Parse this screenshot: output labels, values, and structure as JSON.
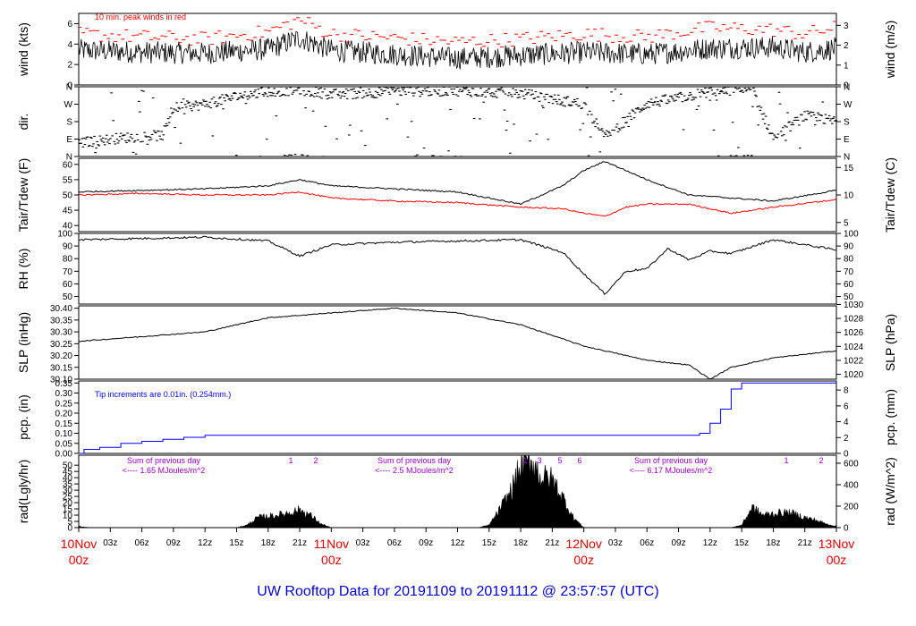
{
  "title": "UW Rooftop Data for 20191109  to  20191112 @ 23:57:57  (UTC)",
  "colors": {
    "peak": "#ff0000",
    "dew": "#ff0000",
    "precip": "#0000ff",
    "annot": "#9900cc",
    "title": "#0000cc",
    "date": "#dd0000"
  },
  "x_axis": {
    "hour_ticks": [
      "03z",
      "06z",
      "09z",
      "12z",
      "15z",
      "18z",
      "21z",
      "03z",
      "06z",
      "09z",
      "12z",
      "15z",
      "18z",
      "21z",
      "03z",
      "06z",
      "09z",
      "12z",
      "15z",
      "18z",
      "21z"
    ],
    "day_labels": [
      {
        "date": "10Nov",
        "time": "00z"
      },
      {
        "date": "11Nov",
        "time": "00z"
      },
      {
        "date": "12Nov",
        "time": "00z"
      },
      {
        "date": "13Nov",
        "time": "00z"
      }
    ]
  },
  "chart_data": [
    {
      "id": "wind",
      "type": "line",
      "ylabel": "wind (kts)",
      "ylabel_right": "wind (m/s)",
      "ylim": [
        0,
        7
      ],
      "yticks": [
        "0",
        "2",
        "4",
        "6"
      ],
      "right_ticks": [
        "0",
        "1",
        "2",
        "3"
      ],
      "annotation": "10 min. peak winds in red",
      "series": [
        {
          "name": "wind",
          "x": [
            0,
            6,
            12,
            18,
            21,
            24,
            30,
            36,
            42,
            48,
            54,
            60,
            66,
            69,
            72
          ],
          "y": [
            3.4,
            3.2,
            3.1,
            3.5,
            4.6,
            3.4,
            3.0,
            2.6,
            2.9,
            3.2,
            3.0,
            3.6,
            3.7,
            3.2,
            3.6
          ]
        },
        {
          "name": "10 min. peak winds",
          "x": [
            0,
            6,
            12,
            18,
            21,
            24,
            30,
            36,
            42,
            48,
            54,
            60,
            66,
            69,
            72
          ],
          "y": [
            5.0,
            4.7,
            4.5,
            5.2,
            6.4,
            5.0,
            4.6,
            4.2,
            4.5,
            5.0,
            4.7,
            5.6,
            5.4,
            5.0,
            5.6
          ]
        }
      ]
    },
    {
      "id": "dir",
      "type": "scatter",
      "ylabel": "dir.",
      "ylim": [
        0,
        360
      ],
      "yticks": [
        "N",
        "E",
        "S",
        "W",
        "N"
      ],
      "right_ticks": [
        "N",
        "E",
        "S",
        "W",
        "N"
      ],
      "series": [
        {
          "name": "dir",
          "x": [
            0,
            4,
            8,
            9,
            12,
            15,
            18,
            21,
            24,
            30,
            36,
            42,
            48,
            50,
            54,
            56,
            60,
            64,
            66,
            69,
            72
          ],
          "y": [
            70,
            95,
            110,
            250,
            270,
            310,
            335,
            345,
            320,
            335,
            340,
            325,
            270,
            100,
            275,
            290,
            335,
            345,
            95,
            210,
            180
          ]
        }
      ]
    },
    {
      "id": "temp",
      "type": "line",
      "ylabel": "Tair/Tdew (F)",
      "ylabel_right": "Tair/Tdew (C)",
      "ylim": [
        38,
        62
      ],
      "yticks": [
        "40",
        "45",
        "50",
        "55",
        "60"
      ],
      "right_ticks": [
        "5",
        "10",
        "15"
      ],
      "series": [
        {
          "name": "Tair",
          "x": [
            0,
            6,
            12,
            18,
            21,
            24,
            30,
            36,
            42,
            46,
            48,
            50,
            52,
            54,
            58,
            62,
            66,
            72
          ],
          "y": [
            51,
            51.5,
            52,
            53,
            55,
            53,
            52,
            51,
            47,
            53,
            58,
            61,
            58,
            55,
            50,
            49,
            48,
            51.5
          ]
        },
        {
          "name": "Tdew",
          "x": [
            0,
            6,
            12,
            18,
            21,
            24,
            30,
            36,
            42,
            46,
            48,
            50,
            52,
            54,
            58,
            62,
            66,
            72
          ],
          "y": [
            50,
            50.5,
            50,
            50,
            51,
            49,
            48,
            47.5,
            46,
            45.5,
            44,
            43,
            46,
            47,
            47,
            44,
            46,
            48.5
          ]
        }
      ]
    },
    {
      "id": "rh",
      "type": "line",
      "ylabel": "RH (%)",
      "ylim": [
        44,
        100
      ],
      "yticks": [
        "50",
        "60",
        "70",
        "80",
        "90",
        "100"
      ],
      "right_ticks": [
        "50",
        "60",
        "70",
        "80",
        "90",
        "100"
      ],
      "series": [
        {
          "name": "RH",
          "x": [
            0,
            6,
            12,
            18,
            21,
            24,
            30,
            36,
            42,
            46,
            48,
            50,
            52,
            54,
            56,
            58,
            60,
            62,
            66,
            72
          ],
          "y": [
            95,
            96,
            97,
            94,
            82,
            91,
            93,
            94,
            95,
            85,
            68,
            52,
            70,
            72,
            88,
            79,
            86,
            84,
            95,
            87
          ]
        }
      ]
    },
    {
      "id": "slp",
      "type": "line",
      "ylabel": "SLP (inHg)",
      "ylabel_right": "SLP (hPa)",
      "ylim": [
        30.1,
        30.41
      ],
      "yticks": [
        "30.10",
        "30.15",
        "30.20",
        "30.25",
        "30.30",
        "30.35",
        "30.40"
      ],
      "right_ticks": [
        "1020",
        "1022",
        "1024",
        "1026",
        "1028",
        "1030"
      ],
      "series": [
        {
          "name": "SLP",
          "x": [
            0,
            6,
            12,
            18,
            24,
            30,
            36,
            42,
            48,
            54,
            58,
            60,
            62,
            66,
            72
          ],
          "y": [
            30.26,
            30.28,
            30.3,
            30.36,
            30.38,
            30.4,
            30.38,
            30.33,
            30.24,
            30.18,
            30.16,
            30.1,
            30.15,
            30.19,
            30.22
          ]
        }
      ]
    },
    {
      "id": "pcp",
      "type": "line",
      "ylabel": "pcp. (in)",
      "ylabel_right": "pcp. (mm)",
      "ylim": [
        0,
        0.36
      ],
      "yticks": [
        "0.00",
        "0.05",
        "0.10",
        "0.15",
        "0.20",
        "0.25",
        "0.30",
        "0.35"
      ],
      "right_ticks": [
        "0",
        "2",
        "4",
        "6",
        "8"
      ],
      "annotation": "Tip increments are 0.01in. (0.254mm.)",
      "series": [
        {
          "name": "pcp",
          "x": [
            0,
            0.5,
            2,
            4,
            6,
            8,
            10,
            12,
            24,
            48,
            58,
            59,
            60,
            61,
            62,
            63,
            72
          ],
          "y": [
            0,
            0.02,
            0.03,
            0.05,
            0.06,
            0.07,
            0.08,
            0.09,
            0.09,
            0.09,
            0.09,
            0.1,
            0.15,
            0.22,
            0.32,
            0.35,
            0.35
          ]
        }
      ]
    },
    {
      "id": "rad",
      "type": "area",
      "ylabel": "rad(Lgly/hr)",
      "ylabel_right": "rad (W/m^2)",
      "ylim": [
        0,
        58
      ],
      "yticks": [
        "0",
        "5",
        "10",
        "15",
        "20",
        "25",
        "30",
        "35",
        "40",
        "45",
        "50"
      ],
      "right_ticks": [
        "0",
        "200",
        "400",
        "600"
      ],
      "series": [
        {
          "name": "rad",
          "x": [
            0,
            1,
            15,
            16,
            17,
            18,
            19,
            20,
            21,
            22,
            23,
            24,
            38,
            39,
            40,
            41,
            42,
            43,
            44,
            45,
            46,
            47,
            48,
            62,
            63,
            64,
            65,
            66,
            67,
            68,
            69,
            70,
            71,
            72
          ],
          "y": [
            1,
            0,
            0,
            2,
            8,
            9,
            10,
            12,
            14,
            10,
            3,
            0,
            0,
            2,
            14,
            28,
            48,
            54,
            40,
            38,
            24,
            8,
            0,
            0,
            2,
            16,
            10,
            11,
            12,
            11,
            8,
            6,
            3,
            1
          ]
        }
      ],
      "annotations": [
        {
          "text": "Sum of previous day",
          "sub": "<---- 1.65 MJoules/m^2"
        },
        {
          "text": "Sum of previous day",
          "sub": "<---- 2.5 MJoules/m^2"
        },
        {
          "text": "Sum of previous day",
          "sub": "<---- 6.17 MJoules/m^2"
        }
      ],
      "marker_labels": [
        "1",
        "2",
        "1",
        "3",
        "5",
        "6",
        "1",
        "2"
      ]
    }
  ]
}
